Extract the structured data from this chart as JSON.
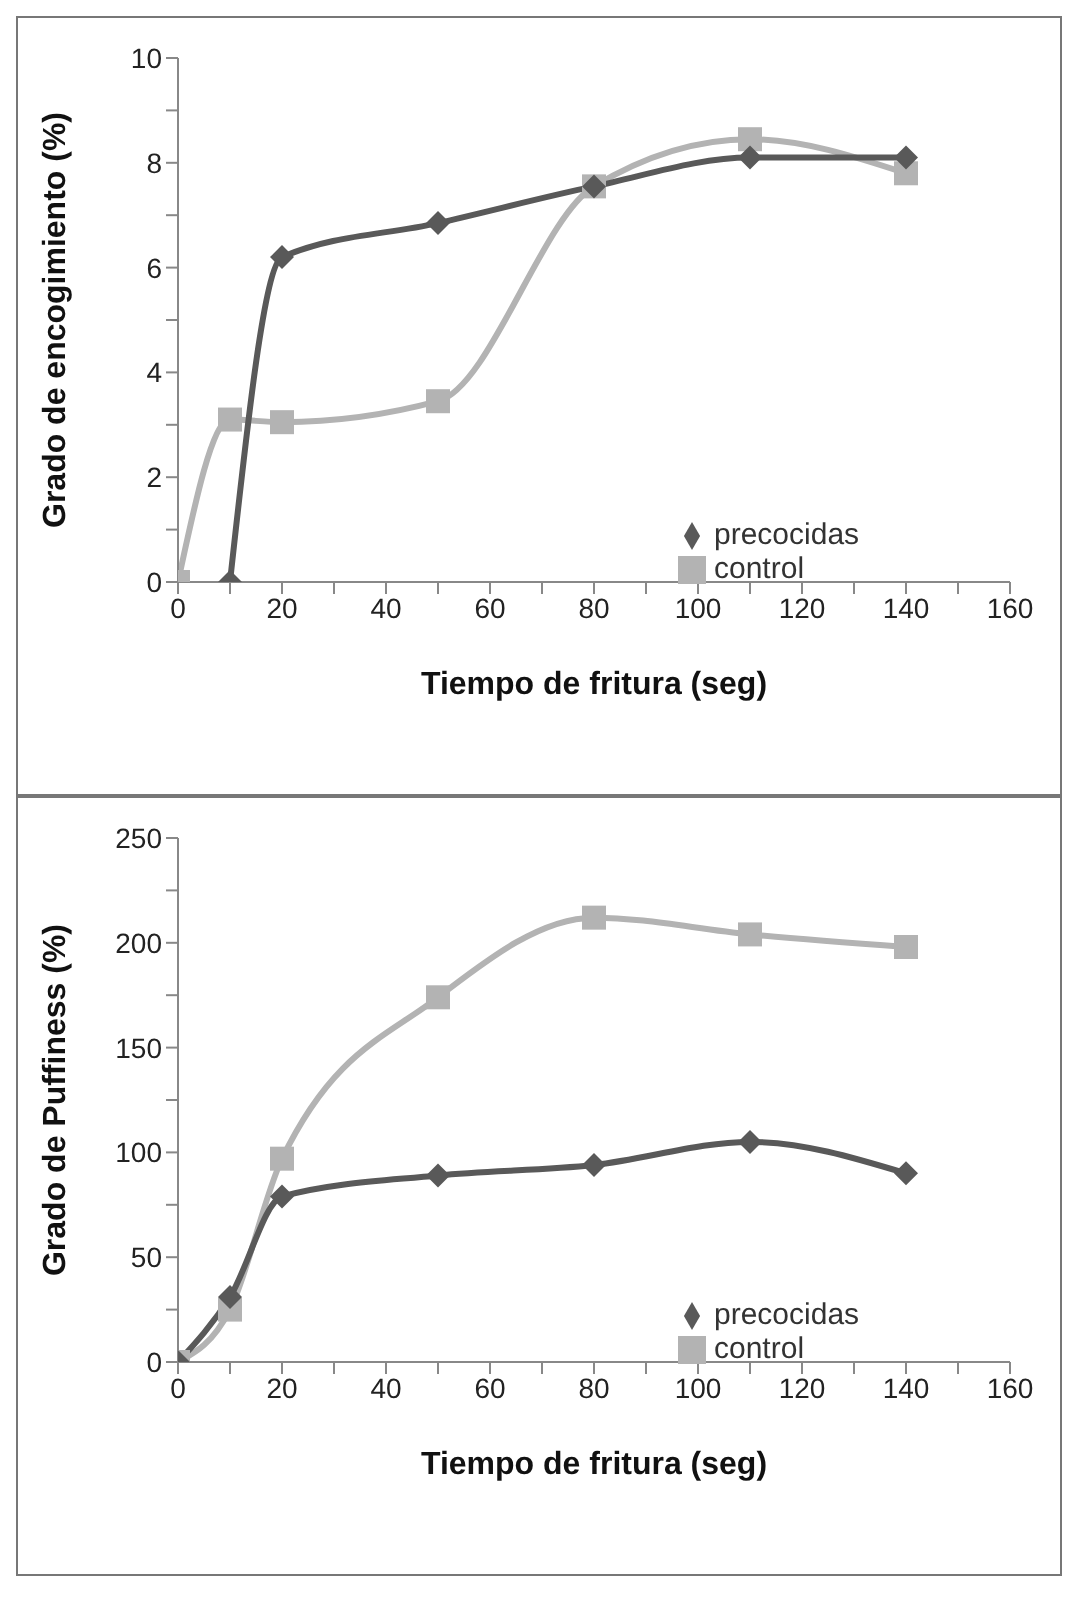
{
  "chart_data": [
    {
      "type": "line",
      "xlabel": "Tiempo de fritura (seg)",
      "ylabel": "Grado de encogimiento (%)",
      "xlim": [
        0,
        160
      ],
      "xticks": [
        0,
        {
          "value": 10,
          "label": null
        },
        20,
        {
          "value": 30,
          "label": null
        },
        40,
        {
          "value": 50,
          "label": null
        },
        60,
        {
          "value": 70,
          "label": null
        },
        80,
        {
          "value": 90,
          "label": null
        },
        100,
        {
          "value": 110,
          "label": null
        },
        120,
        {
          "value": 130,
          "label": null
        },
        140,
        {
          "value": 150,
          "label": null
        },
        160
      ],
      "ylim": [
        0,
        10
      ],
      "yticks": [
        0,
        {
          "value": 1,
          "label": null
        },
        2,
        {
          "value": 3,
          "label": null
        },
        4,
        {
          "value": 5,
          "label": null
        },
        6,
        {
          "value": 7,
          "label": null
        },
        8,
        {
          "value": 9,
          "label": null
        },
        10
      ],
      "grid": false,
      "legend": "bottom right",
      "series": [
        {
          "name": "precocidas",
          "color": "#595959",
          "marker": "diamond",
          "x": [
            10,
            20,
            50,
            80,
            110,
            140
          ],
          "values": [
            0,
            6.2,
            6.85,
            7.55,
            8.1,
            8.1
          ]
        },
        {
          "name": "control",
          "color": "#b3b3b3",
          "marker": "square",
          "x": [
            0,
            10,
            20,
            50,
            80,
            110,
            140
          ],
          "values": [
            0,
            3.1,
            3.05,
            3.45,
            7.55,
            8.45,
            7.8
          ]
        }
      ]
    },
    {
      "type": "line",
      "xlabel": "Tiempo de fritura (seg)",
      "ylabel": "Grado de Puffiness (%)",
      "xlim": [
        0,
        160
      ],
      "xticks": [
        0,
        {
          "value": 10,
          "label": null
        },
        20,
        {
          "value": 30,
          "label": null
        },
        40,
        {
          "value": 50,
          "label": null
        },
        60,
        {
          "value": 70,
          "label": null
        },
        80,
        {
          "value": 90,
          "label": null
        },
        100,
        {
          "value": 110,
          "label": null
        },
        120,
        {
          "value": 130,
          "label": null
        },
        140,
        {
          "value": 150,
          "label": null
        },
        160
      ],
      "ylim": [
        0,
        250
      ],
      "yticks": [
        0,
        {
          "value": 25,
          "label": null
        },
        50,
        {
          "value": 75,
          "label": null
        },
        100,
        {
          "value": 125,
          "label": null
        },
        150,
        {
          "value": 175,
          "label": null
        },
        200,
        {
          "value": 225,
          "label": null
        },
        250
      ],
      "grid": false,
      "legend": "bottom right",
      "series": [
        {
          "name": "precocidas",
          "color": "#595959",
          "marker": "diamond",
          "x": [
            0,
            10,
            20,
            50,
            80,
            110,
            140
          ],
          "values": [
            0,
            31,
            79,
            89,
            94,
            105,
            90
          ]
        },
        {
          "name": "control",
          "color": "#b3b3b3",
          "marker": "square",
          "x": [
            0,
            10,
            20,
            50,
            80,
            110,
            140
          ],
          "values": [
            0,
            25,
            97,
            174,
            212,
            204,
            198
          ]
        }
      ]
    }
  ]
}
